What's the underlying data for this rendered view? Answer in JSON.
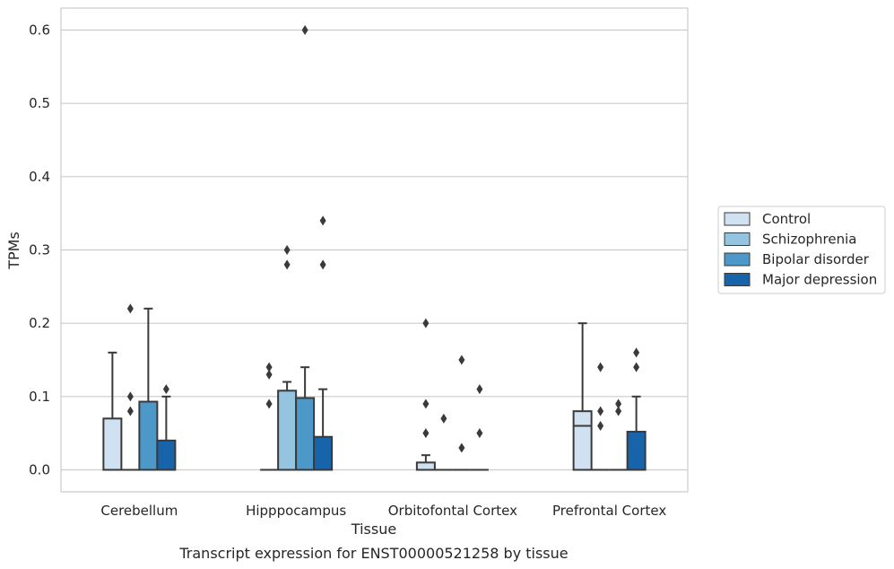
{
  "chart_data": {
    "type": "box",
    "title": "",
    "caption": "Transcript expression for ENST00000521258 by tissue",
    "xlabel": "Tissue",
    "ylabel": "TPMs",
    "ylim": [
      -0.03,
      0.63
    ],
    "yticks": [
      "0.0",
      "0.1",
      "0.2",
      "0.3",
      "0.4",
      "0.5",
      "0.6"
    ],
    "grid": "horizontal",
    "legend_position": "right",
    "categories": [
      "Cerebellum",
      "Hipppocampus",
      "Orbitofontal Cortex",
      "Prefrontal Cortex"
    ],
    "series": [
      {
        "name": "Control",
        "color": "#d0e1f2",
        "boxes": [
          {
            "q1": 0.0,
            "median": 0.0,
            "q3": 0.07,
            "whislo": 0.0,
            "whishi": 0.16,
            "fliers": []
          },
          {
            "q1": 0.0,
            "median": 0.0,
            "q3": 0.0,
            "whislo": 0.0,
            "whishi": 0.0,
            "fliers": [
              0.09,
              0.13,
              0.14
            ]
          },
          {
            "q1": 0.0,
            "median": 0.0,
            "q3": 0.01,
            "whislo": 0.0,
            "whishi": 0.02,
            "fliers": [
              0.05,
              0.09,
              0.2
            ]
          },
          {
            "q1": 0.0,
            "median": 0.06,
            "q3": 0.08,
            "whislo": 0.0,
            "whishi": 0.2,
            "fliers": []
          }
        ]
      },
      {
        "name": "Schizophrenia",
        "color": "#94c4df",
        "boxes": [
          {
            "q1": 0.0,
            "median": 0.0,
            "q3": 0.0,
            "whislo": 0.0,
            "whishi": 0.0,
            "fliers": [
              0.08,
              0.1,
              0.22
            ]
          },
          {
            "q1": 0.0,
            "median": 0.0,
            "q3": 0.108,
            "whislo": 0.0,
            "whishi": 0.12,
            "fliers": [
              0.28,
              0.3
            ]
          },
          {
            "q1": 0.0,
            "median": 0.0,
            "q3": 0.0,
            "whislo": 0.0,
            "whishi": 0.0,
            "fliers": [
              0.07
            ]
          },
          {
            "q1": 0.0,
            "median": 0.0,
            "q3": 0.0,
            "whislo": 0.0,
            "whishi": 0.0,
            "fliers": [
              0.06,
              0.08,
              0.14
            ]
          }
        ]
      },
      {
        "name": "Bipolar disorder",
        "color": "#4b98c9",
        "boxes": [
          {
            "q1": 0.0,
            "median": 0.0,
            "q3": 0.093,
            "whislo": 0.0,
            "whishi": 0.22,
            "fliers": []
          },
          {
            "q1": 0.0,
            "median": 0.0,
            "q3": 0.098,
            "whislo": 0.0,
            "whishi": 0.14,
            "fliers": [
              0.6
            ]
          },
          {
            "q1": 0.0,
            "median": 0.0,
            "q3": 0.0,
            "whislo": 0.0,
            "whishi": 0.0,
            "fliers": [
              0.03,
              0.15
            ]
          },
          {
            "q1": 0.0,
            "median": 0.0,
            "q3": 0.0,
            "whislo": 0.0,
            "whishi": 0.0,
            "fliers": [
              0.08,
              0.09
            ]
          }
        ]
      },
      {
        "name": "Major depression",
        "color": "#1764ab",
        "boxes": [
          {
            "q1": 0.0,
            "median": 0.0,
            "q3": 0.04,
            "whislo": 0.0,
            "whishi": 0.1,
            "fliers": [
              0.11
            ]
          },
          {
            "q1": 0.0,
            "median": 0.0,
            "q3": 0.045,
            "whislo": 0.0,
            "whishi": 0.11,
            "fliers": [
              0.28,
              0.34
            ]
          },
          {
            "q1": 0.0,
            "median": 0.0,
            "q3": 0.0,
            "whislo": 0.0,
            "whishi": 0.0,
            "fliers": [
              0.05,
              0.11
            ]
          },
          {
            "q1": 0.0,
            "median": 0.0,
            "q3": 0.052,
            "whislo": 0.0,
            "whishi": 0.1,
            "fliers": [
              0.14,
              0.16
            ]
          }
        ]
      }
    ]
  }
}
